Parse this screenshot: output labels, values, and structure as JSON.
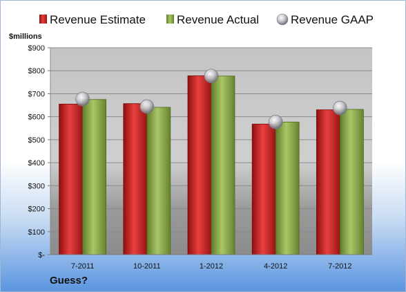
{
  "chart_data": {
    "type": "bar",
    "categories": [
      "7-2011",
      "10-2011",
      "1-2012",
      "4-2012",
      "7-2012"
    ],
    "series": [
      {
        "name": "Revenue Estimate",
        "values": [
          655,
          657,
          778,
          568,
          630
        ],
        "color": "#d42a2a"
      },
      {
        "name": "Revenue Actual",
        "values": [
          675,
          641,
          777,
          577,
          632
        ],
        "color": "#8fb04a"
      }
    ],
    "markers": {
      "name": "Revenue GAAP",
      "values": [
        677,
        644,
        777,
        577,
        638
      ],
      "color": "#c0c0c8"
    },
    "ylabel": "$millions",
    "ylim": [
      0,
      900
    ],
    "yticks": [
      0,
      100,
      200,
      300,
      400,
      500,
      600,
      700,
      800,
      900
    ],
    "ytick_labels": [
      "$-",
      "$100",
      "$200",
      "$300",
      "$400",
      "$500",
      "$600",
      "$700",
      "$800",
      "$900"
    ],
    "grid": true,
    "legend_position": "top",
    "annotation": "Guess?"
  }
}
